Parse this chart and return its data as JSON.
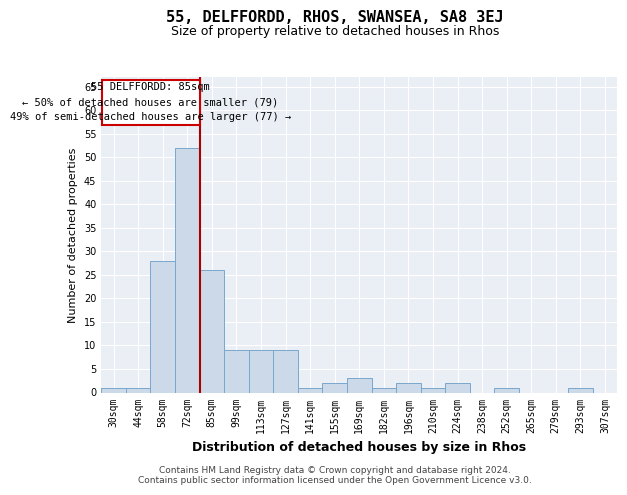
{
  "title": "55, DELFFORDD, RHOS, SWANSEA, SA8 3EJ",
  "subtitle": "Size of property relative to detached houses in Rhos",
  "xlabel": "Distribution of detached houses by size in Rhos",
  "ylabel": "Number of detached properties",
  "categories": [
    "30sqm",
    "44sqm",
    "58sqm",
    "72sqm",
    "85sqm",
    "99sqm",
    "113sqm",
    "127sqm",
    "141sqm",
    "155sqm",
    "169sqm",
    "182sqm",
    "196sqm",
    "210sqm",
    "224sqm",
    "238sqm",
    "252sqm",
    "265sqm",
    "279sqm",
    "293sqm",
    "307sqm"
  ],
  "bar_values": [
    1,
    1,
    28,
    52,
    26,
    9,
    9,
    9,
    1,
    2,
    3,
    1,
    2,
    1,
    2,
    0,
    1,
    0,
    0,
    1,
    0
  ],
  "bar_color": "#ccd9e8",
  "bar_edge_color": "#7ba7cc",
  "vline_position": 3.5,
  "vline_color": "#aa0000",
  "annotation_text": "55 DELFFORDD: 85sqm\n← 50% of detached houses are smaller (79)\n49% of semi-detached houses are larger (77) →",
  "annotation_box_edgecolor": "#cc0000",
  "ylim": [
    0,
    67
  ],
  "yticks": [
    0,
    5,
    10,
    15,
    20,
    25,
    30,
    35,
    40,
    45,
    50,
    55,
    60,
    65
  ],
  "footer_line1": "Contains HM Land Registry data © Crown copyright and database right 2024.",
  "footer_line2": "Contains public sector information licensed under the Open Government Licence v3.0.",
  "bg_color": "#eaeff5",
  "grid_color": "#ffffff",
  "title_fontsize": 11,
  "subtitle_fontsize": 9,
  "xlabel_fontsize": 9,
  "ylabel_fontsize": 8,
  "tick_fontsize": 7,
  "annotation_fontsize": 7.5,
  "footer_fontsize": 6.5
}
